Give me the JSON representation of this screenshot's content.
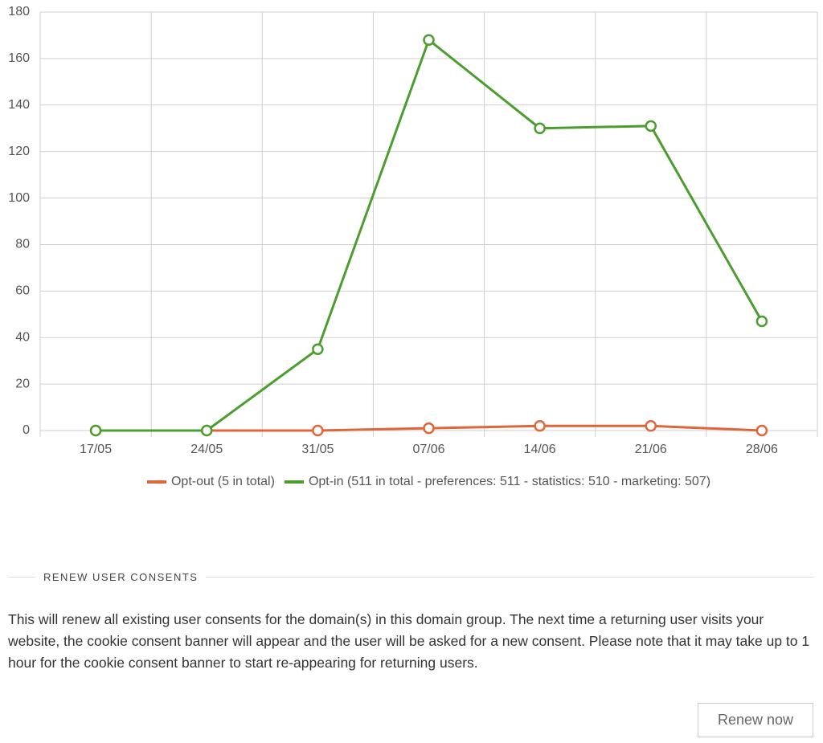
{
  "chart_data": {
    "type": "line",
    "categories": [
      "17/05",
      "24/05",
      "31/05",
      "07/06",
      "14/06",
      "21/06",
      "28/06"
    ],
    "series": [
      {
        "name": "Opt-out (5 in total)",
        "color": "#e0663a",
        "values": [
          0,
          0,
          0,
          1,
          2,
          2,
          0
        ]
      },
      {
        "name": "Opt-in (511 in total - preferences: 511 - statistics: 510 - marketing: 507)",
        "color": "#4c9d2f",
        "values": [
          0,
          0,
          35,
          168,
          130,
          131,
          47
        ]
      }
    ],
    "ylim": [
      0,
      180
    ],
    "yticks": [
      0,
      20,
      40,
      60,
      80,
      100,
      120,
      140,
      160,
      180
    ],
    "grid": true,
    "legend": "bottom"
  },
  "section": {
    "title": "RENEW USER CONSENTS",
    "text": "This will renew all existing user consents for the domain(s) in this domain group. The next time a returning user visits your website, the cookie consent banner will appear and the user will be asked for a new consent. Please note that it may take up to 1 hour for the cookie consent banner to start re-appearing for returning users.",
    "button": "Renew now"
  }
}
